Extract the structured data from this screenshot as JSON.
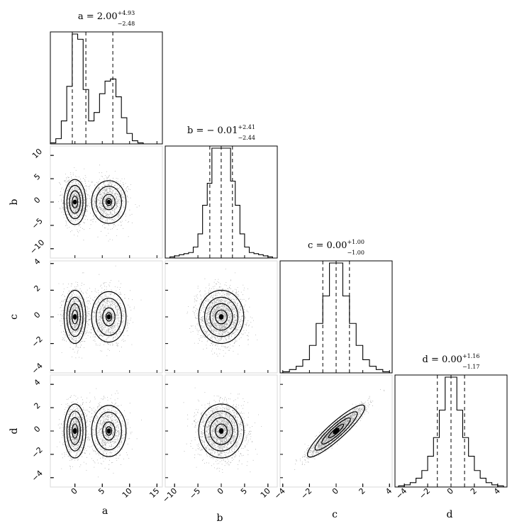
{
  "chart_data": {
    "type": "corner",
    "parameters": [
      "a",
      "b",
      "c",
      "d"
    ],
    "axis_labels": [
      "a",
      "b",
      "c",
      "d"
    ],
    "titles": [
      {
        "param": "a",
        "prefix": "a = ",
        "median": "2.00",
        "plus": "+4.93",
        "minus": "−2.48"
      },
      {
        "param": "b",
        "prefix": "b = ",
        "median": "− 0.01",
        "plus": "+2.41",
        "minus": "−2.44"
      },
      {
        "param": "c",
        "prefix": "c = ",
        "median": "0.00",
        "plus": "+1.00",
        "minus": "−1.00"
      },
      {
        "param": "d",
        "prefix": "d = ",
        "median": "0.00",
        "plus": "+1.16",
        "minus": "−1.17"
      }
    ],
    "ranges": {
      "a": [
        -4.5,
        16
      ],
      "b": [
        -12,
        12
      ],
      "c": [
        -4.2,
        4.2
      ],
      "d": [
        -4.8,
        4.8
      ]
    },
    "ticks": {
      "a": {
        "values": [
          0,
          5,
          10,
          15
        ],
        "labels": [
          "0",
          "5",
          "10",
          "15"
        ]
      },
      "b": {
        "values": [
          -10,
          -5,
          0,
          5,
          10
        ],
        "labels": [
          "−10",
          "−5",
          "0",
          "5",
          "10"
        ]
      },
      "c": {
        "values": [
          -4,
          -2,
          0,
          2,
          4
        ],
        "labels": [
          "−4",
          "−2",
          "0",
          "2",
          "4"
        ]
      },
      "d": {
        "values": [
          -4,
          -2,
          0,
          2,
          4
        ],
        "labels": [
          "−4",
          "−2",
          "0",
          "2",
          "4"
        ]
      }
    },
    "quantiles": {
      "a": [
        -0.48,
        2.0,
        6.93
      ],
      "b": [
        -2.45,
        -0.01,
        2.4
      ],
      "c": [
        -1.0,
        0.0,
        1.0
      ],
      "d": [
        -1.17,
        0.0,
        1.16
      ]
    },
    "histograms": {
      "a": {
        "bins": [
          -4.5,
          -3.5,
          -2.5,
          -1.5,
          -0.5,
          0.5,
          1.5,
          2.5,
          3.5,
          4.5,
          5.5,
          6.5,
          7.5,
          8.5,
          9.5,
          10.5,
          11.5,
          12.5
        ],
        "counts": [
          0.01,
          0.05,
          0.22,
          0.55,
          1.05,
          1.0,
          0.52,
          0.22,
          0.3,
          0.48,
          0.6,
          0.62,
          0.45,
          0.25,
          0.1,
          0.03,
          0.01
        ]
      },
      "b": {
        "bins": [
          -11,
          -10,
          -9,
          -8,
          -7,
          -6,
          -5,
          -4,
          -3,
          -2,
          -1,
          0,
          1,
          2,
          3,
          4,
          5,
          6,
          7,
          8,
          9,
          10,
          11
        ],
        "counts": [
          0.01,
          0.02,
          0.03,
          0.04,
          0.05,
          0.1,
          0.22,
          0.48,
          0.68,
          1.0,
          1.0,
          1.0,
          1.0,
          0.7,
          0.48,
          0.22,
          0.1,
          0.05,
          0.04,
          0.03,
          0.02,
          0.01
        ]
      },
      "c": {
        "bins": [
          -4,
          -3.5,
          -3,
          -2.5,
          -2,
          -1.5,
          -1,
          -0.5,
          0,
          0.5,
          1,
          1.5,
          2,
          2.5,
          3,
          3.5,
          4
        ],
        "counts": [
          0.01,
          0.03,
          0.06,
          0.12,
          0.25,
          0.45,
          0.7,
          1.0,
          1.0,
          0.7,
          0.45,
          0.25,
          0.12,
          0.06,
          0.03,
          0.01
        ]
      },
      "d": {
        "bins": [
          -4.5,
          -4,
          -3.5,
          -3,
          -2.5,
          -2,
          -1.5,
          -1,
          -0.5,
          0,
          0.5,
          1,
          1.5,
          2,
          2.5,
          3,
          3.5,
          4,
          4.5
        ],
        "counts": [
          0.01,
          0.02,
          0.04,
          0.08,
          0.15,
          0.28,
          0.45,
          0.7,
          1.0,
          1.0,
          0.7,
          0.45,
          0.28,
          0.15,
          0.08,
          0.04,
          0.02,
          0.01
        ]
      }
    },
    "pairs": [
      {
        "x": "a",
        "y": "b"
      },
      {
        "x": "a",
        "y": "c"
      },
      {
        "x": "b",
        "y": "c"
      },
      {
        "x": "a",
        "y": "d"
      },
      {
        "x": "b",
        "y": "d"
      },
      {
        "x": "c",
        "y": "d"
      }
    ],
    "contour_levels": [
      0.5,
      1.0,
      1.5,
      2.0
    ],
    "colors": {
      "ink": "#000000",
      "background": "#ffffff"
    }
  }
}
